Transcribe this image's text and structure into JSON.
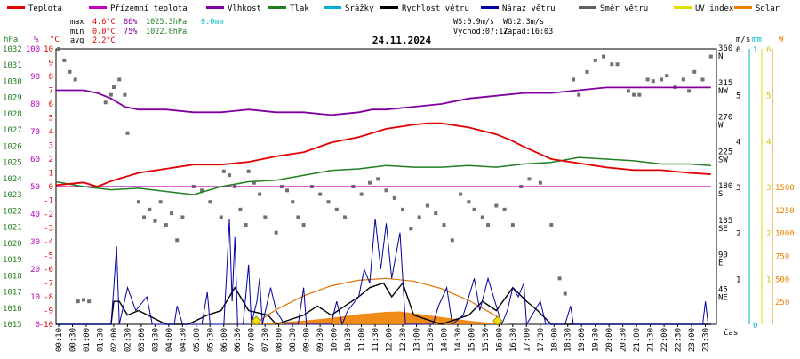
{
  "legend": [
    {
      "label": "Teplota",
      "color": "#e00000"
    },
    {
      "label": "Přízemní teplota",
      "color": "#c000c0"
    },
    {
      "label": "Vlhkost",
      "color": "#8000a0"
    },
    {
      "label": "Tlak",
      "color": "#208020"
    },
    {
      "label": "Srážky",
      "color": "#00b0d0"
    },
    {
      "label": "Rychlost větru",
      "color": "#000000"
    },
    {
      "label": "Náraz větru",
      "color": "#0000a0"
    },
    {
      "label": "Směr větru",
      "color": "#606060"
    },
    {
      "label": "UV index",
      "color": "#e0e000"
    },
    {
      "label": "Solar",
      "color": "#f08000"
    }
  ],
  "stats": {
    "max": {
      "label": "max",
      "temp": "4.6°C",
      "hum": "86%",
      "press": "1025.3hPa",
      "rain": "0.0mm"
    },
    "min": {
      "label": "min",
      "temp": "0.0°C",
      "hum": "75%",
      "press": "1022.8hPa"
    },
    "avg": {
      "label": "avg",
      "temp": "2.2°C"
    }
  },
  "wind_info": {
    "ws": "WS:0.9m/s",
    "wg": "WG:2.3m/s",
    "sunrise": "Východ:07:17",
    "sunset": "Západ:16:03"
  },
  "chart_data": {
    "type": "line",
    "title": "24.11.2024",
    "xlabel": "čas",
    "x_ticks": [
      "00:10",
      "00:30",
      "01:00",
      "01:30",
      "02:00",
      "02:30",
      "03:00",
      "03:30",
      "04:00",
      "04:30",
      "05:00",
      "05:30",
      "06:00",
      "06:30",
      "07:00",
      "07:30",
      "08:00",
      "08:30",
      "09:00",
      "09:30",
      "10:00",
      "10:30",
      "11:00",
      "11:30",
      "12:00",
      "12:30",
      "13:00",
      "13:30",
      "14:00",
      "14:30",
      "15:00",
      "15:30",
      "16:00",
      "16:30",
      "17:00",
      "17:30",
      "18:00",
      "18:30",
      "19:00",
      "19:30",
      "20:00",
      "20:30",
      "21:00",
      "21:30",
      "22:00",
      "22:30",
      "23:00",
      "23:30"
    ],
    "axes": {
      "pressure_hpa": {
        "unit": "hPa",
        "range": [
          1015,
          1032
        ],
        "ticks": [
          "1032",
          "1031",
          "1030",
          "1029",
          "1028",
          "1027",
          "1026",
          "1025",
          "1024",
          "1023",
          "1022",
          "1021",
          "1020",
          "1019",
          "1018",
          "1017",
          "1016",
          "1015"
        ],
        "color": "#208020"
      },
      "humidity_pct": {
        "unit": "%",
        "range": [
          0,
          100
        ],
        "ticks": [
          "100",
          "90",
          "80",
          "70",
          "60",
          "50",
          "40",
          "30",
          "20",
          "10",
          "0"
        ],
        "color": "#c000c0"
      },
      "temperature_c": {
        "unit": "°C",
        "range": [
          -10,
          10
        ],
        "ticks": [
          "10",
          "9",
          "8",
          "7",
          "6",
          "5",
          "4",
          "3",
          "2",
          "1",
          "0",
          "-1",
          "-2",
          "-3",
          "-4",
          "-5",
          "-6",
          "-7",
          "-8",
          "-9",
          "-10"
        ],
        "color": "#e00000"
      },
      "wind_dir_deg": {
        "ticks": [
          {
            "deg": "360",
            "dir": "N"
          },
          {
            "deg": "315",
            "dir": "NW"
          },
          {
            "deg": "270",
            "dir": "W"
          },
          {
            "deg": "225",
            "dir": "SW"
          },
          {
            "deg": "180",
            "dir": "S"
          },
          {
            "deg": "135",
            "dir": "SE"
          },
          {
            "deg": "90",
            "dir": "E"
          },
          {
            "deg": "45",
            "dir": "NE"
          }
        ]
      },
      "wind_ms": {
        "unit": "m/s",
        "range": [
          0,
          6
        ],
        "ticks": [
          "6",
          "5",
          "4",
          "3",
          "2",
          "1"
        ]
      },
      "rain_mm": {
        "unit": "mm",
        "ticks": [
          "1",
          "0"
        ],
        "color": "#00b0d0"
      },
      "uv_solar": {
        "unit": "W",
        "uv_ticks": [
          "6",
          "5",
          "4",
          "3",
          "2",
          "1"
        ],
        "solar_ticks": [
          "1500",
          "1250",
          "1000",
          "750",
          "500",
          "250"
        ],
        "color": "#f08000"
      }
    },
    "series": [
      {
        "name": "Teplota",
        "color": "#e00000",
        "x": [
          0,
          1,
          1.5,
          2,
          3,
          4,
          5,
          6,
          7,
          8,
          9,
          10,
          11,
          12,
          13,
          13.5,
          14,
          15,
          16,
          16.5,
          17,
          18,
          19,
          20,
          21,
          22,
          23,
          23.8
        ],
        "y": [
          0.1,
          0.3,
          0.0,
          0.4,
          1.0,
          1.3,
          1.6,
          1.6,
          1.8,
          2.2,
          2.5,
          3.2,
          3.6,
          4.2,
          4.5,
          4.6,
          4.6,
          4.3,
          3.8,
          3.4,
          2.9,
          2.0,
          1.7,
          1.4,
          1.2,
          1.2,
          1.0,
          0.9
        ]
      },
      {
        "name": "Vlhkost",
        "color": "#8000a0",
        "x": [
          0,
          1,
          1.5,
          2,
          2.5,
          3,
          4,
          5,
          6,
          7,
          8,
          9,
          10,
          11,
          11.5,
          12,
          13,
          14,
          15,
          16,
          17,
          18,
          19,
          20,
          21,
          22,
          23,
          23.8
        ],
        "y": [
          85,
          85,
          84,
          82,
          79,
          78,
          78,
          77,
          77,
          78,
          77,
          77,
          76,
          77,
          78,
          78,
          79,
          80,
          82,
          83,
          84,
          84,
          85,
          86,
          86,
          86,
          86,
          86
        ]
      },
      {
        "name": "Tlak",
        "color": "#208020",
        "x": [
          0,
          1,
          2,
          3,
          4,
          5,
          6,
          7,
          8,
          9,
          10,
          11,
          12,
          13,
          14,
          15,
          16,
          17,
          18,
          19,
          20,
          21,
          22,
          23,
          23.8
        ],
        "y": [
          1023.8,
          1023.5,
          1023.3,
          1023.4,
          1023.2,
          1023.0,
          1023.5,
          1023.8,
          1023.9,
          1024.2,
          1024.5,
          1024.6,
          1024.8,
          1024.7,
          1024.7,
          1024.8,
          1024.7,
          1024.9,
          1025.0,
          1025.3,
          1025.2,
          1025.1,
          1024.9,
          1024.9,
          1024.8
        ]
      },
      {
        "name": "Přízemní teplota",
        "color": "#c000c0",
        "x": [
          0,
          23.8
        ],
        "y": [
          0.0,
          0.0
        ]
      }
    ],
    "wind_speed": [
      [
        0,
        0
      ],
      [
        1.7,
        0
      ],
      [
        2,
        0
      ],
      [
        2.1,
        0.5
      ],
      [
        2.3,
        0.5
      ],
      [
        2.6,
        0.2
      ],
      [
        3,
        0.3
      ],
      [
        4,
        0
      ],
      [
        4.6,
        0
      ],
      [
        4.8,
        0
      ],
      [
        5.5,
        0.2
      ],
      [
        6,
        0.3
      ],
      [
        6.5,
        0.8
      ],
      [
        7,
        0.3
      ],
      [
        7.7,
        0.2
      ],
      [
        8,
        0
      ],
      [
        9,
        0.2
      ],
      [
        9.5,
        0.4
      ],
      [
        10,
        0.2
      ],
      [
        10.5,
        0.4
      ],
      [
        11,
        0.6
      ],
      [
        11.4,
        0.8
      ],
      [
        11.9,
        0.9
      ],
      [
        12.2,
        0.6
      ],
      [
        12.6,
        0.9
      ],
      [
        13,
        0.2
      ],
      [
        14,
        0
      ],
      [
        15,
        0.2
      ],
      [
        15.5,
        0.5
      ],
      [
        16,
        0.3
      ],
      [
        16.6,
        0.8
      ],
      [
        17.1,
        0.5
      ],
      [
        17.5,
        0.3
      ],
      [
        18,
        0
      ],
      [
        23.8,
        0
      ]
    ],
    "wind_gust": [
      [
        0,
        0
      ],
      [
        2,
        0
      ],
      [
        2.1,
        0.8
      ],
      [
        2.2,
        1.7
      ],
      [
        2.3,
        0
      ],
      [
        2.6,
        0.8
      ],
      [
        2.9,
        0.3
      ],
      [
        3.3,
        0.6
      ],
      [
        3.5,
        0
      ],
      [
        4.3,
        0
      ],
      [
        4.4,
        0.4
      ],
      [
        4.6,
        0
      ],
      [
        5.3,
        0
      ],
      [
        5.5,
        0.7
      ],
      [
        5.6,
        0
      ],
      [
        6.1,
        0
      ],
      [
        6.2,
        1.1
      ],
      [
        6.3,
        2.3
      ],
      [
        6.4,
        0.5
      ],
      [
        6.5,
        1.9
      ],
      [
        6.6,
        0
      ],
      [
        6.8,
        0
      ],
      [
        7,
        1.3
      ],
      [
        7.1,
        0
      ],
      [
        7.3,
        0.5
      ],
      [
        7.4,
        1.0
      ],
      [
        7.5,
        0
      ],
      [
        7.8,
        0.8
      ],
      [
        8,
        0.3
      ],
      [
        8.3,
        0
      ],
      [
        8.8,
        0
      ],
      [
        9,
        0.8
      ],
      [
        9.1,
        0
      ],
      [
        10,
        0
      ],
      [
        10.2,
        0.5
      ],
      [
        10.4,
        0
      ],
      [
        10.6,
        0.3
      ],
      [
        11,
        0.6
      ],
      [
        11.2,
        1.2
      ],
      [
        11.4,
        0.9
      ],
      [
        11.6,
        2.3
      ],
      [
        11.8,
        1.2
      ],
      [
        12,
        2.2
      ],
      [
        12.2,
        1.0
      ],
      [
        12.5,
        2.0
      ],
      [
        12.7,
        0
      ],
      [
        13.7,
        0
      ],
      [
        13.9,
        0.4
      ],
      [
        14.2,
        0.8
      ],
      [
        14.4,
        0
      ],
      [
        14.8,
        0.2
      ],
      [
        15.2,
        1.0
      ],
      [
        15.4,
        0.3
      ],
      [
        15.7,
        1.0
      ],
      [
        16,
        0.4
      ],
      [
        16.2,
        0
      ],
      [
        16.4,
        0.3
      ],
      [
        16.6,
        0.8
      ],
      [
        16.8,
        0.6
      ],
      [
        17,
        0.9
      ],
      [
        17.1,
        0
      ],
      [
        17.6,
        0.5
      ],
      [
        17.8,
        0
      ],
      [
        18.5,
        0
      ],
      [
        18.7,
        0.4
      ],
      [
        18.8,
        0
      ],
      [
        23.5,
        0
      ],
      [
        23.6,
        0.5
      ],
      [
        23.7,
        0
      ],
      [
        23.8,
        0
      ]
    ],
    "wind_dir": [
      [
        0.1,
        360
      ],
      [
        0.3,
        345
      ],
      [
        0.5,
        330
      ],
      [
        0.7,
        320
      ],
      [
        0.8,
        30
      ],
      [
        1,
        32
      ],
      [
        1.2,
        30
      ],
      [
        1.8,
        290
      ],
      [
        2,
        300
      ],
      [
        2.1,
        310
      ],
      [
        2.3,
        320
      ],
      [
        2.5,
        300
      ],
      [
        2.6,
        250
      ],
      [
        3,
        160
      ],
      [
        3.2,
        140
      ],
      [
        3.4,
        150
      ],
      [
        3.6,
        135
      ],
      [
        3.8,
        160
      ],
      [
        4,
        130
      ],
      [
        4.2,
        145
      ],
      [
        4.4,
        110
      ],
      [
        4.6,
        140
      ],
      [
        5,
        180
      ],
      [
        5.3,
        175
      ],
      [
        5.6,
        160
      ],
      [
        6,
        140
      ],
      [
        6.1,
        200
      ],
      [
        6.3,
        195
      ],
      [
        6.5,
        180
      ],
      [
        6.7,
        150
      ],
      [
        6.9,
        130
      ],
      [
        7,
        200
      ],
      [
        7.2,
        185
      ],
      [
        7.4,
        170
      ],
      [
        7.6,
        140
      ],
      [
        8,
        120
      ],
      [
        8.2,
        180
      ],
      [
        8.4,
        175
      ],
      [
        8.6,
        160
      ],
      [
        8.8,
        140
      ],
      [
        9,
        130
      ],
      [
        9.3,
        180
      ],
      [
        9.6,
        170
      ],
      [
        9.9,
        160
      ],
      [
        10.2,
        150
      ],
      [
        10.5,
        140
      ],
      [
        10.8,
        180
      ],
      [
        11.1,
        170
      ],
      [
        11.4,
        185
      ],
      [
        11.7,
        190
      ],
      [
        12,
        175
      ],
      [
        12.3,
        165
      ],
      [
        12.6,
        150
      ],
      [
        12.9,
        125
      ],
      [
        13.2,
        140
      ],
      [
        13.5,
        155
      ],
      [
        13.8,
        145
      ],
      [
        14.1,
        130
      ],
      [
        14.4,
        110
      ],
      [
        14.7,
        170
      ],
      [
        15,
        160
      ],
      [
        15.2,
        150
      ],
      [
        15.5,
        140
      ],
      [
        15.7,
        130
      ],
      [
        16,
        155
      ],
      [
        16.3,
        150
      ],
      [
        16.6,
        130
      ],
      [
        16.9,
        180
      ],
      [
        17.2,
        190
      ],
      [
        17.6,
        185
      ],
      [
        18,
        130
      ],
      [
        18.3,
        60
      ],
      [
        18.5,
        40
      ],
      [
        18.8,
        320
      ],
      [
        19,
        300
      ],
      [
        19.3,
        330
      ],
      [
        19.6,
        345
      ],
      [
        19.9,
        350
      ],
      [
        20.2,
        340
      ],
      [
        20.4,
        340
      ],
      [
        20.8,
        305
      ],
      [
        21,
        300
      ],
      [
        21.2,
        300
      ],
      [
        21.5,
        320
      ],
      [
        21.7,
        318
      ],
      [
        22,
        320
      ],
      [
        22.2,
        325
      ],
      [
        22.5,
        310
      ],
      [
        22.8,
        320
      ],
      [
        23,
        305
      ],
      [
        23.2,
        330
      ],
      [
        23.5,
        320
      ],
      [
        23.8,
        350
      ]
    ],
    "solar": [
      [
        0,
        0
      ],
      [
        7,
        0
      ],
      [
        8,
        20
      ],
      [
        9,
        40
      ],
      [
        10,
        70
      ],
      [
        11,
        110
      ],
      [
        12,
        135
      ],
      [
        12.5,
        140
      ],
      [
        13,
        120
      ],
      [
        14,
        80
      ],
      [
        15,
        40
      ],
      [
        16,
        10
      ],
      [
        16.5,
        0
      ],
      [
        23.8,
        0
      ]
    ],
    "solar_theoretical": [
      [
        7.2,
        0
      ],
      [
        8,
        160
      ],
      [
        9,
        310
      ],
      [
        10,
        420
      ],
      [
        11,
        480
      ],
      [
        12,
        500
      ],
      [
        13,
        470
      ],
      [
        14,
        390
      ],
      [
        15,
        260
      ],
      [
        16,
        90
      ],
      [
        16.1,
        0
      ]
    ],
    "markers": [
      {
        "t": 7.28,
        "label": "sunrise"
      },
      {
        "t": 16.05,
        "label": "sunset"
      }
    ]
  }
}
